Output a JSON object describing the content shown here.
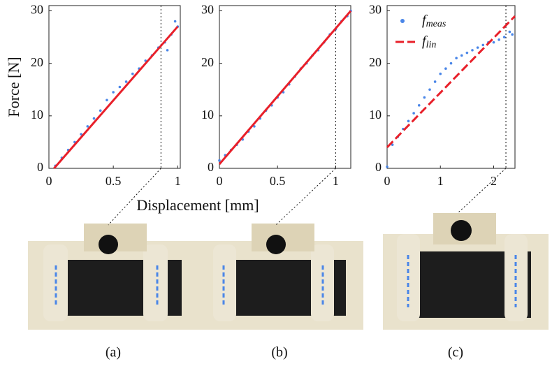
{
  "figure": {
    "xlabel": "Displacement [mm]",
    "panels": [
      "(a)",
      "(b)",
      "(c)"
    ]
  },
  "chart_data": [
    {
      "type": "scatter",
      "ylabel": "Force [N]",
      "xlim": [
        0,
        1.02
      ],
      "ylim": [
        0,
        31
      ],
      "xticks": [
        0,
        0.5,
        1
      ],
      "yticks": [
        0,
        10,
        20,
        30
      ],
      "vline": 0.87,
      "series": [
        {
          "name": "f",
          "subscript": "meas",
          "kind": "points",
          "color": "#4a86e8",
          "x": [
            0.05,
            0.1,
            0.15,
            0.2,
            0.25,
            0.3,
            0.35,
            0.4,
            0.45,
            0.5,
            0.55,
            0.6,
            0.65,
            0.7,
            0.75,
            0.8,
            0.85,
            0.9,
            0.95,
            1.0,
            0.98,
            0.92
          ],
          "values": [
            0.5,
            2,
            3.5,
            5,
            6.5,
            8,
            9.5,
            11,
            13,
            14.5,
            15.5,
            16.5,
            18,
            19,
            20.5,
            21.5,
            23,
            24,
            25.5,
            27,
            28,
            22.5
          ]
        },
        {
          "name": "f",
          "subscript": "lin",
          "kind": "line",
          "color": "#e8202a",
          "dash": false,
          "x": [
            0.04,
            1.0
          ],
          "values": [
            0,
            27
          ]
        }
      ]
    },
    {
      "type": "scatter",
      "xlim": [
        0,
        1.13
      ],
      "ylim": [
        0,
        31
      ],
      "xticks": [
        0,
        0.5,
        1
      ],
      "yticks": [
        0,
        10,
        20,
        30
      ],
      "vline": 1.0,
      "series": [
        {
          "name": "f",
          "subscript": "meas",
          "kind": "points",
          "color": "#4a86e8",
          "x": [
            0,
            0.05,
            0.1,
            0.15,
            0.2,
            0.25,
            0.3,
            0.35,
            0.4,
            0.45,
            0.5,
            0.55,
            0.6,
            0.65,
            0.7,
            0.75,
            0.8,
            0.85,
            0.9,
            0.95,
            1.0,
            1.05,
            1.1,
            1.13
          ],
          "values": [
            1.5,
            2.5,
            3.5,
            4.5,
            5.5,
            7,
            8,
            9.5,
            11,
            12,
            13.5,
            14.5,
            16,
            17.5,
            19,
            20,
            21.5,
            22.5,
            24,
            25.5,
            26.5,
            28,
            29,
            30
          ]
        },
        {
          "name": "f",
          "subscript": "lin",
          "kind": "line",
          "color": "#e8202a",
          "dash": false,
          "x": [
            0,
            1.13
          ],
          "values": [
            0.8,
            30
          ]
        }
      ]
    },
    {
      "type": "scatter",
      "xlim": [
        0,
        2.4
      ],
      "ylim": [
        0,
        31
      ],
      "xticks": [
        0,
        1,
        2
      ],
      "yticks": [
        0,
        10,
        20,
        30
      ],
      "vline": 2.23,
      "legend": true,
      "series": [
        {
          "name": "f",
          "subscript": "meas",
          "kind": "points",
          "color": "#4a86e8",
          "x": [
            0,
            0.1,
            0.2,
            0.3,
            0.4,
            0.5,
            0.6,
            0.7,
            0.8,
            0.9,
            1.0,
            1.1,
            1.2,
            1.3,
            1.4,
            1.5,
            1.6,
            1.7,
            1.8,
            1.9,
            2.0,
            2.1,
            2.2,
            2.3,
            2.35
          ],
          "values": [
            0.3,
            4.5,
            6,
            7.5,
            9,
            10.5,
            12,
            13.5,
            15,
            16.5,
            18,
            19,
            20,
            21,
            21.5,
            22,
            22.5,
            23,
            23.5,
            24,
            24,
            24.5,
            25,
            26,
            25.5
          ]
        },
        {
          "name": "f",
          "subscript": "lin",
          "kind": "line",
          "color": "#e8202a",
          "dash": true,
          "x": [
            0,
            2.4
          ],
          "values": [
            4,
            29
          ]
        }
      ]
    }
  ]
}
